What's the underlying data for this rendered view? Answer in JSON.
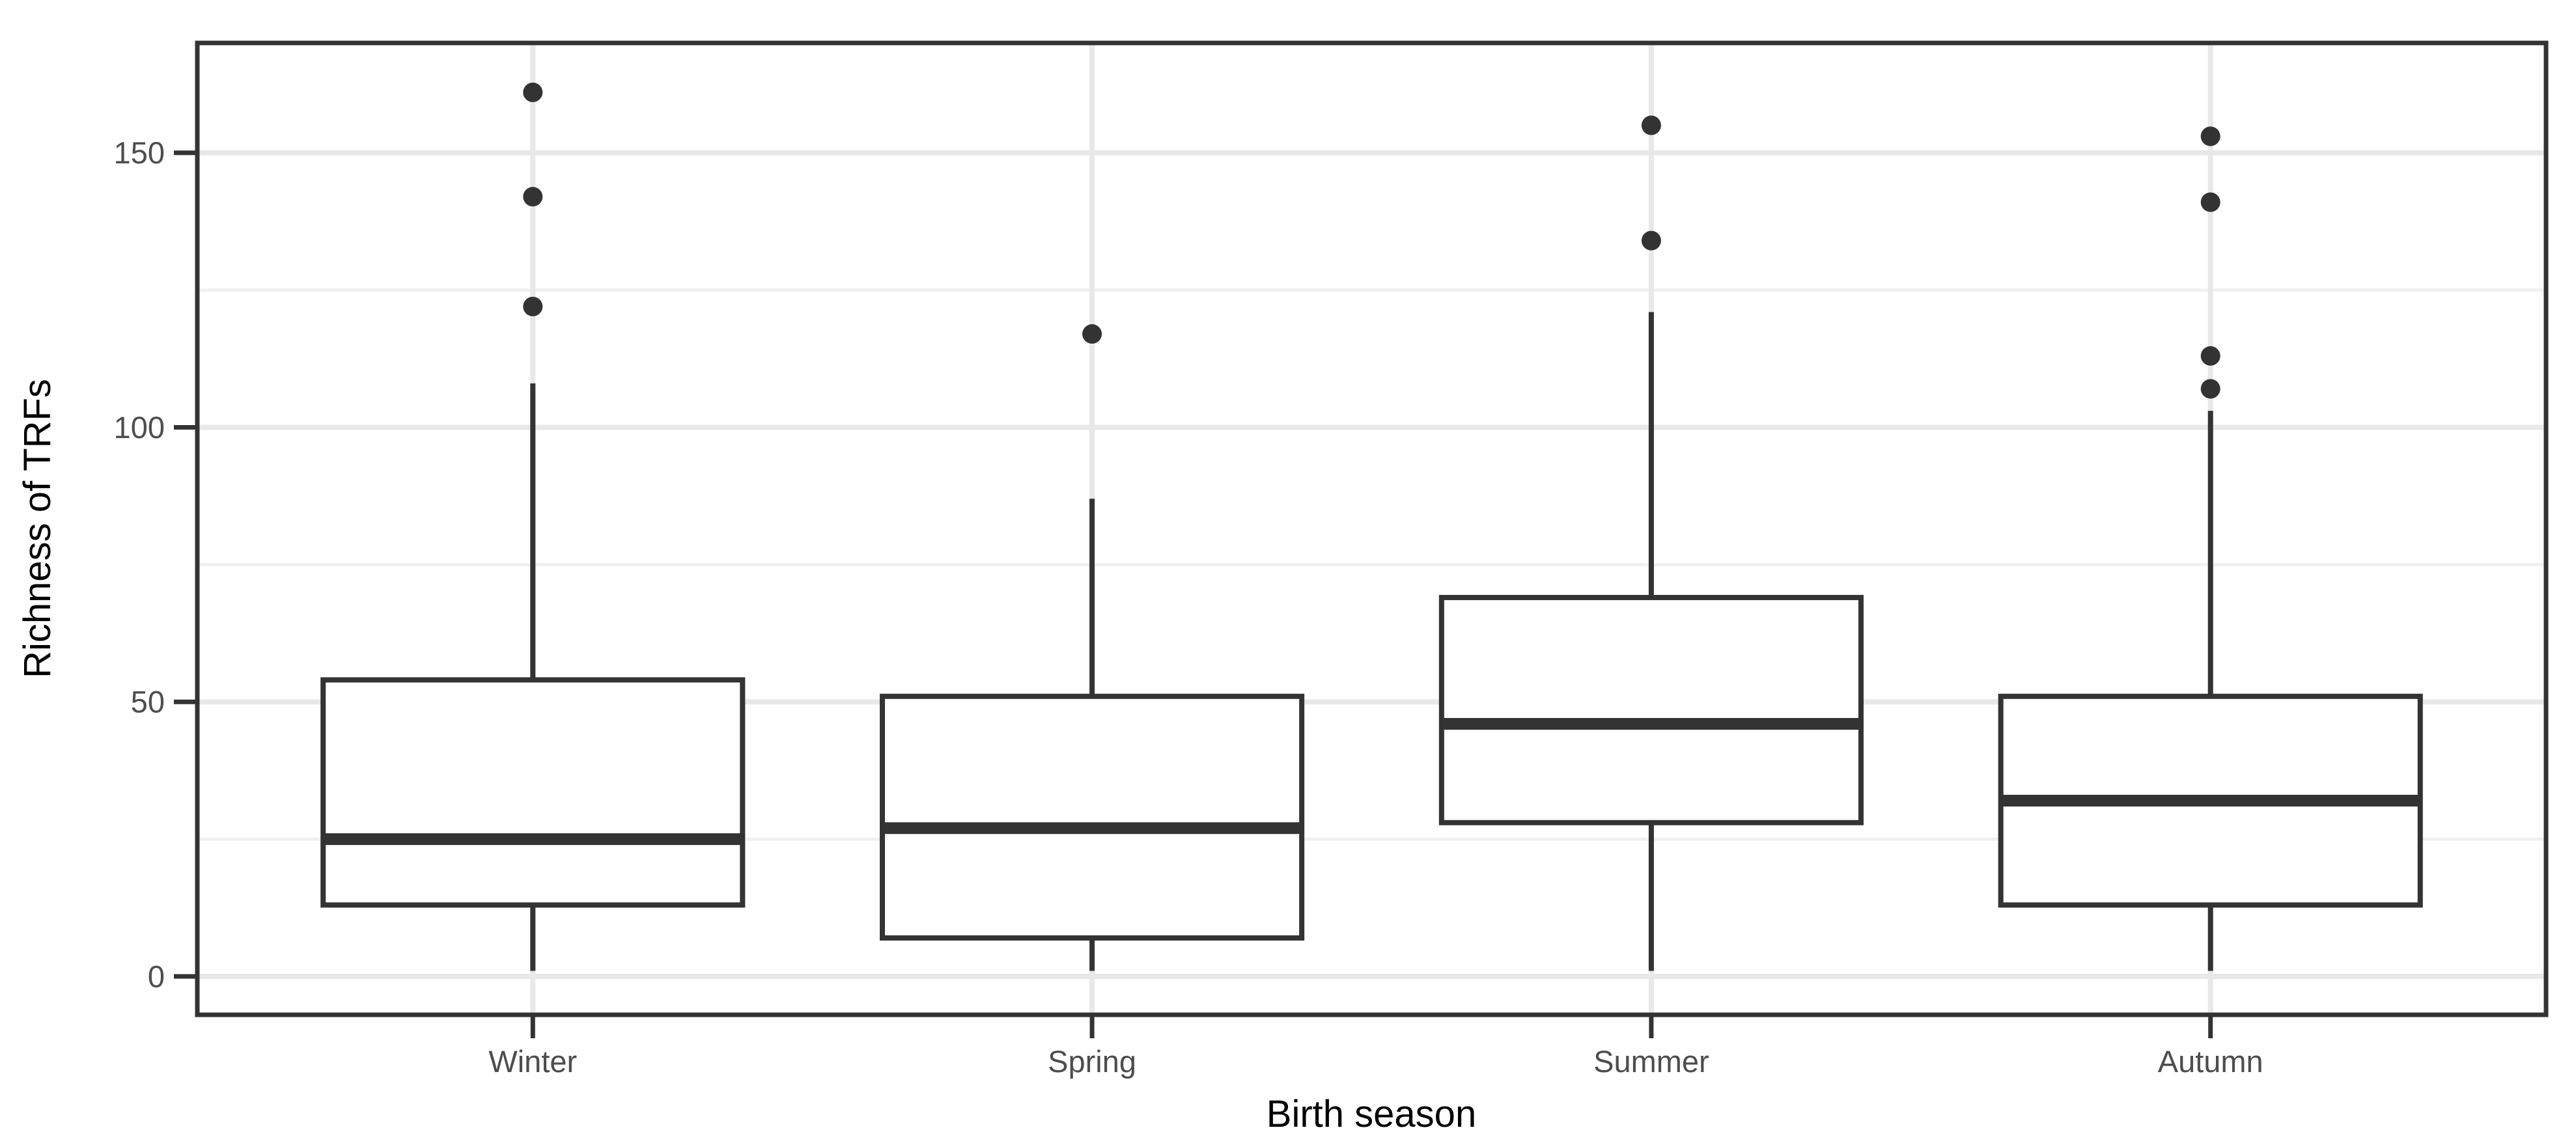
{
  "chart_data": {
    "type": "boxplot",
    "title": "",
    "xlabel": "Birth season",
    "ylabel": "Richness of TRFs",
    "categories": [
      "Winter",
      "Spring",
      "Summer",
      "Autumn"
    ],
    "series": [
      {
        "name": "Winter",
        "whisker_low": 1,
        "q1": 13,
        "median": 25,
        "q3": 54,
        "whisker_high": 108,
        "outliers": [
          122,
          142,
          161
        ]
      },
      {
        "name": "Spring",
        "whisker_low": 1,
        "q1": 7,
        "median": 27,
        "q3": 51,
        "whisker_high": 87,
        "outliers": [
          117
        ]
      },
      {
        "name": "Summer",
        "whisker_low": 1,
        "q1": 28,
        "median": 46,
        "q3": 69,
        "whisker_high": 121,
        "outliers": [
          134,
          155
        ]
      },
      {
        "name": "Autumn",
        "whisker_low": 1,
        "q1": 13,
        "median": 32,
        "q3": 51,
        "whisker_high": 103,
        "outliers": [
          107,
          113,
          141,
          153
        ]
      }
    ],
    "y_axis": {
      "tick_labels": [
        "0",
        "50",
        "100",
        "150"
      ],
      "ticks": [
        0,
        50,
        100,
        150
      ],
      "minor_ticks": [
        25,
        75,
        125
      ],
      "ylim": [
        -7,
        170
      ],
      "grid": true
    },
    "x_axis": {
      "grid": true,
      "tick_labels": [
        "Winter",
        "Spring",
        "Summer",
        "Autumn"
      ]
    },
    "legend": null,
    "colors": {
      "box_line": "#333333",
      "panel_border": "#333333",
      "axis_text": "#4d4d4d",
      "axis_title": "#000000",
      "grid_major": "#e8e8e8",
      "grid_minor": "#f0f0f0",
      "outlier": "#333333",
      "background": "#ffffff"
    }
  }
}
